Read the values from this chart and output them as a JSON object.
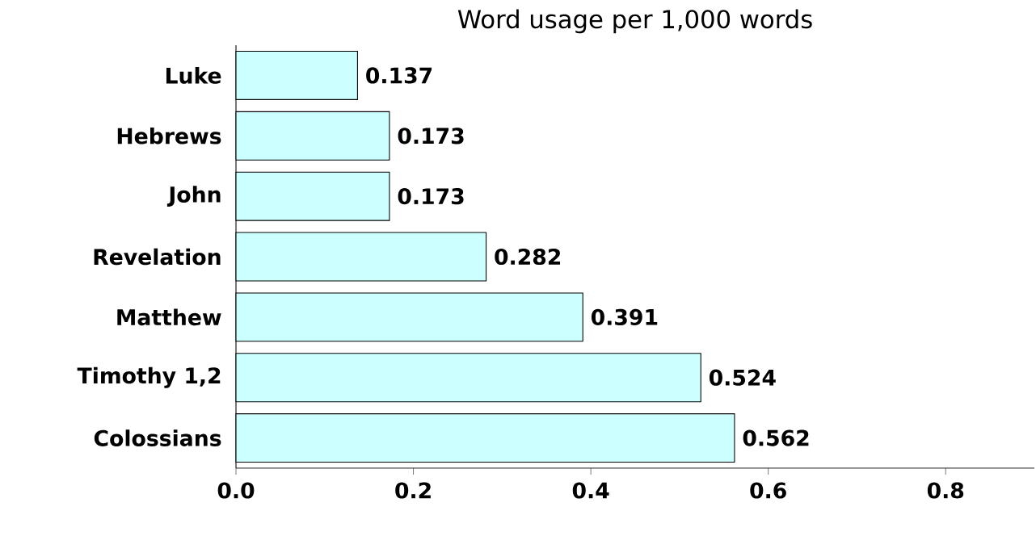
{
  "chart_data": {
    "type": "bar",
    "orientation": "horizontal",
    "title": "Word usage per 1,000 words",
    "categories": [
      "Luke",
      "Hebrews",
      "John",
      "Revelation",
      "Matthew",
      "Timothy 1,2",
      "Colossians"
    ],
    "values": [
      0.137,
      0.173,
      0.173,
      0.282,
      0.391,
      0.524,
      0.562
    ],
    "color": "#ccffff",
    "data_labels": true,
    "grid": false,
    "xlim": [
      0,
      0.9
    ],
    "xticks": [
      {
        "value": 0,
        "label": "0.0"
      },
      {
        "value": 0.2,
        "label": "0.2"
      },
      {
        "value": 0.4,
        "label": "0.4"
      },
      {
        "value": 0.6,
        "label": "0.6"
      },
      {
        "value": 0.8,
        "label": "0.8"
      }
    ]
  }
}
